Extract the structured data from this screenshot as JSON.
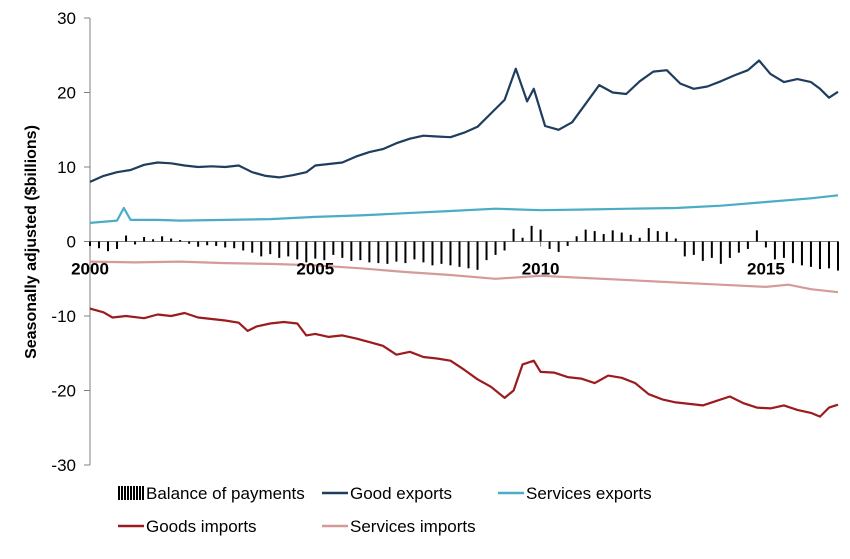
{
  "chart_data": {
    "type": "line",
    "title": "",
    "xlabel": "",
    "ylabel": "Seasonally adjusted ($billions)",
    "ylim": [
      -30,
      30
    ],
    "xlim": [
      2000,
      2016.6
    ],
    "y_ticks": [
      "30",
      "20",
      "10",
      "0",
      "-10",
      "-20",
      "-30"
    ],
    "x_ticks": [
      "2000",
      "2005",
      "2010",
      "2015"
    ],
    "grid": false,
    "legend_position": "bottom",
    "colors": {
      "balance": "#000000",
      "goods_exports": "#1f3d5f",
      "services_exports": "#4bacc6",
      "goods_imports": "#9b1b1e",
      "services_imports": "#d49b99"
    },
    "legend": [
      {
        "key": "balance",
        "label": "Balance of payments",
        "style": "bar"
      },
      {
        "key": "goods_exports",
        "label": "Good exports",
        "style": "line"
      },
      {
        "key": "services_exports",
        "label": "Services exports",
        "style": "line"
      },
      {
        "key": "goods_imports",
        "label": "Goods imports",
        "style": "line"
      },
      {
        "key": "services_imports",
        "label": "Services imports",
        "style": "line"
      }
    ],
    "series": [
      {
        "key": "goods_exports",
        "name": "Good exports",
        "type": "line",
        "points": [
          [
            2000.0,
            8.0
          ],
          [
            2000.3,
            8.8
          ],
          [
            2000.6,
            9.3
          ],
          [
            2000.9,
            9.6
          ],
          [
            2001.2,
            10.3
          ],
          [
            2001.5,
            10.6
          ],
          [
            2001.8,
            10.5
          ],
          [
            2002.1,
            10.2
          ],
          [
            2002.4,
            10.0
          ],
          [
            2002.7,
            10.1
          ],
          [
            2003.0,
            10.0
          ],
          [
            2003.3,
            10.2
          ],
          [
            2003.6,
            9.3
          ],
          [
            2003.9,
            8.8
          ],
          [
            2004.2,
            8.6
          ],
          [
            2004.5,
            8.9
          ],
          [
            2004.8,
            9.3
          ],
          [
            2005.0,
            10.2
          ],
          [
            2005.3,
            10.4
          ],
          [
            2005.6,
            10.6
          ],
          [
            2005.9,
            11.4
          ],
          [
            2006.2,
            12.0
          ],
          [
            2006.5,
            12.4
          ],
          [
            2006.8,
            13.2
          ],
          [
            2007.1,
            13.8
          ],
          [
            2007.4,
            14.2
          ],
          [
            2007.7,
            14.1
          ],
          [
            2008.0,
            14.0
          ],
          [
            2008.3,
            14.6
          ],
          [
            2008.6,
            15.4
          ],
          [
            2008.9,
            17.2
          ],
          [
            2009.2,
            19.0
          ],
          [
            2009.45,
            23.2
          ],
          [
            2009.7,
            18.8
          ],
          [
            2009.85,
            20.5
          ],
          [
            2010.1,
            15.5
          ],
          [
            2010.4,
            15.0
          ],
          [
            2010.7,
            16.0
          ],
          [
            2011.0,
            18.5
          ],
          [
            2011.3,
            21.0
          ],
          [
            2011.6,
            20.0
          ],
          [
            2011.9,
            19.8
          ],
          [
            2012.2,
            21.5
          ],
          [
            2012.5,
            22.8
          ],
          [
            2012.8,
            23.0
          ],
          [
            2013.1,
            21.2
          ],
          [
            2013.4,
            20.5
          ],
          [
            2013.7,
            20.8
          ],
          [
            2014.0,
            21.5
          ],
          [
            2014.3,
            22.3
          ],
          [
            2014.6,
            23.0
          ],
          [
            2014.85,
            24.3
          ],
          [
            2015.1,
            22.5
          ],
          [
            2015.4,
            21.4
          ],
          [
            2015.7,
            21.8
          ],
          [
            2016.0,
            21.4
          ],
          [
            2016.2,
            20.5
          ],
          [
            2016.4,
            19.3
          ],
          [
            2016.6,
            20.1
          ]
        ]
      },
      {
        "key": "services_exports",
        "name": "Services exports",
        "type": "line",
        "points": [
          [
            2000.0,
            2.5
          ],
          [
            2000.6,
            2.8
          ],
          [
            2000.75,
            4.5
          ],
          [
            2000.9,
            2.9
          ],
          [
            2001.5,
            2.9
          ],
          [
            2002.0,
            2.8
          ],
          [
            2003.0,
            2.9
          ],
          [
            2004.0,
            3.0
          ],
          [
            2005.0,
            3.3
          ],
          [
            2006.0,
            3.5
          ],
          [
            2007.0,
            3.8
          ],
          [
            2008.0,
            4.1
          ],
          [
            2009.0,
            4.4
          ],
          [
            2010.0,
            4.2
          ],
          [
            2011.0,
            4.3
          ],
          [
            2012.0,
            4.4
          ],
          [
            2013.0,
            4.5
          ],
          [
            2014.0,
            4.8
          ],
          [
            2015.0,
            5.3
          ],
          [
            2016.0,
            5.8
          ],
          [
            2016.6,
            6.2
          ]
        ]
      },
      {
        "key": "services_imports",
        "name": "Services imports",
        "type": "line",
        "points": [
          [
            2000.0,
            -2.7
          ],
          [
            2001.0,
            -2.8
          ],
          [
            2002.0,
            -2.7
          ],
          [
            2003.0,
            -2.9
          ],
          [
            2004.0,
            -3.0
          ],
          [
            2005.0,
            -3.2
          ],
          [
            2006.0,
            -3.6
          ],
          [
            2007.0,
            -4.1
          ],
          [
            2008.0,
            -4.5
          ],
          [
            2009.0,
            -5.0
          ],
          [
            2010.0,
            -4.6
          ],
          [
            2011.0,
            -4.9
          ],
          [
            2012.0,
            -5.2
          ],
          [
            2013.0,
            -5.5
          ],
          [
            2014.0,
            -5.8
          ],
          [
            2015.0,
            -6.1
          ],
          [
            2015.5,
            -5.8
          ],
          [
            2016.0,
            -6.4
          ],
          [
            2016.6,
            -6.8
          ]
        ]
      },
      {
        "key": "goods_imports",
        "name": "Goods imports",
        "type": "line",
        "points": [
          [
            2000.0,
            -9.0
          ],
          [
            2000.3,
            -9.5
          ],
          [
            2000.5,
            -10.2
          ],
          [
            2000.8,
            -10.0
          ],
          [
            2001.2,
            -10.3
          ],
          [
            2001.5,
            -9.8
          ],
          [
            2001.8,
            -10.0
          ],
          [
            2002.1,
            -9.6
          ],
          [
            2002.4,
            -10.2
          ],
          [
            2002.7,
            -10.4
          ],
          [
            2003.0,
            -10.6
          ],
          [
            2003.3,
            -10.9
          ],
          [
            2003.5,
            -12.0
          ],
          [
            2003.7,
            -11.4
          ],
          [
            2004.0,
            -11.0
          ],
          [
            2004.3,
            -10.8
          ],
          [
            2004.6,
            -11.0
          ],
          [
            2004.8,
            -12.6
          ],
          [
            2005.0,
            -12.4
          ],
          [
            2005.3,
            -12.8
          ],
          [
            2005.6,
            -12.6
          ],
          [
            2005.9,
            -13.0
          ],
          [
            2006.2,
            -13.5
          ],
          [
            2006.5,
            -14.0
          ],
          [
            2006.8,
            -15.2
          ],
          [
            2007.1,
            -14.8
          ],
          [
            2007.4,
            -15.5
          ],
          [
            2007.7,
            -15.7
          ],
          [
            2008.0,
            -16.0
          ],
          [
            2008.3,
            -17.2
          ],
          [
            2008.6,
            -18.5
          ],
          [
            2008.9,
            -19.5
          ],
          [
            2009.2,
            -21.0
          ],
          [
            2009.4,
            -20.0
          ],
          [
            2009.6,
            -16.5
          ],
          [
            2009.85,
            -16.0
          ],
          [
            2010.0,
            -17.5
          ],
          [
            2010.3,
            -17.6
          ],
          [
            2010.6,
            -18.2
          ],
          [
            2010.9,
            -18.4
          ],
          [
            2011.2,
            -19.0
          ],
          [
            2011.5,
            -18.0
          ],
          [
            2011.8,
            -18.3
          ],
          [
            2012.1,
            -19.0
          ],
          [
            2012.4,
            -20.5
          ],
          [
            2012.7,
            -21.2
          ],
          [
            2013.0,
            -21.6
          ],
          [
            2013.3,
            -21.8
          ],
          [
            2013.6,
            -22.0
          ],
          [
            2013.9,
            -21.4
          ],
          [
            2014.2,
            -20.8
          ],
          [
            2014.5,
            -21.7
          ],
          [
            2014.8,
            -22.3
          ],
          [
            2015.1,
            -22.4
          ],
          [
            2015.4,
            -22.0
          ],
          [
            2015.7,
            -22.6
          ],
          [
            2016.0,
            -23.0
          ],
          [
            2016.2,
            -23.5
          ],
          [
            2016.4,
            -22.3
          ],
          [
            2016.6,
            -21.9
          ]
        ]
      }
    ],
    "balance_of_payments": {
      "name": "Balance of payments",
      "type": "bar",
      "points": [
        [
          2000.0,
          -0.6
        ],
        [
          2000.2,
          -0.9
        ],
        [
          2000.4,
          -1.3
        ],
        [
          2000.6,
          -1.0
        ],
        [
          2000.8,
          0.8
        ],
        [
          2001.0,
          -0.4
        ],
        [
          2001.2,
          0.6
        ],
        [
          2001.4,
          0.3
        ],
        [
          2001.6,
          0.7
        ],
        [
          2001.8,
          0.4
        ],
        [
          2002.0,
          0.2
        ],
        [
          2002.2,
          -0.3
        ],
        [
          2002.4,
          -0.7
        ],
        [
          2002.6,
          -0.5
        ],
        [
          2002.8,
          -0.6
        ],
        [
          2003.0,
          -0.8
        ],
        [
          2003.2,
          -0.9
        ],
        [
          2003.4,
          -1.2
        ],
        [
          2003.6,
          -1.5
        ],
        [
          2003.8,
          -2.0
        ],
        [
          2004.0,
          -1.7
        ],
        [
          2004.2,
          -2.2
        ],
        [
          2004.4,
          -2.0
        ],
        [
          2004.6,
          -2.4
        ],
        [
          2004.8,
          -2.8
        ],
        [
          2005.0,
          -2.3
        ],
        [
          2005.2,
          -2.5
        ],
        [
          2005.4,
          -1.8
        ],
        [
          2005.6,
          -2.2
        ],
        [
          2005.8,
          -2.6
        ],
        [
          2006.0,
          -2.5
        ],
        [
          2006.2,
          -2.8
        ],
        [
          2006.4,
          -2.9
        ],
        [
          2006.6,
          -3.0
        ],
        [
          2006.8,
          -2.7
        ],
        [
          2007.0,
          -2.9
        ],
        [
          2007.2,
          -2.4
        ],
        [
          2007.4,
          -2.8
        ],
        [
          2007.6,
          -3.2
        ],
        [
          2007.8,
          -3.0
        ],
        [
          2008.0,
          -3.2
        ],
        [
          2008.2,
          -3.4
        ],
        [
          2008.4,
          -3.6
        ],
        [
          2008.6,
          -3.8
        ],
        [
          2008.8,
          -2.5
        ],
        [
          2009.0,
          -1.8
        ],
        [
          2009.2,
          -1.2
        ],
        [
          2009.4,
          1.7
        ],
        [
          2009.6,
          0.5
        ],
        [
          2009.8,
          2.1
        ],
        [
          2010.0,
          1.6
        ],
        [
          2010.2,
          -1.0
        ],
        [
          2010.4,
          -1.4
        ],
        [
          2010.6,
          -0.6
        ],
        [
          2010.8,
          0.7
        ],
        [
          2011.0,
          1.6
        ],
        [
          2011.2,
          1.4
        ],
        [
          2011.4,
          1.0
        ],
        [
          2011.6,
          1.5
        ],
        [
          2011.8,
          1.2
        ],
        [
          2012.0,
          0.9
        ],
        [
          2012.2,
          0.5
        ],
        [
          2012.4,
          1.8
        ],
        [
          2012.6,
          1.4
        ],
        [
          2012.8,
          1.3
        ],
        [
          2013.0,
          0.4
        ],
        [
          2013.2,
          -2.0
        ],
        [
          2013.4,
          -1.8
        ],
        [
          2013.6,
          -2.6
        ],
        [
          2013.8,
          -2.2
        ],
        [
          2014.0,
          -3.0
        ],
        [
          2014.2,
          -2.2
        ],
        [
          2014.4,
          -1.5
        ],
        [
          2014.6,
          -1.0
        ],
        [
          2014.8,
          1.5
        ],
        [
          2015.0,
          -0.8
        ],
        [
          2015.2,
          -2.4
        ],
        [
          2015.4,
          -2.2
        ],
        [
          2015.6,
          -2.9
        ],
        [
          2015.8,
          -3.2
        ],
        [
          2016.0,
          -3.4
        ],
        [
          2016.2,
          -3.7
        ],
        [
          2016.4,
          -3.6
        ],
        [
          2016.6,
          -3.9
        ]
      ]
    }
  }
}
